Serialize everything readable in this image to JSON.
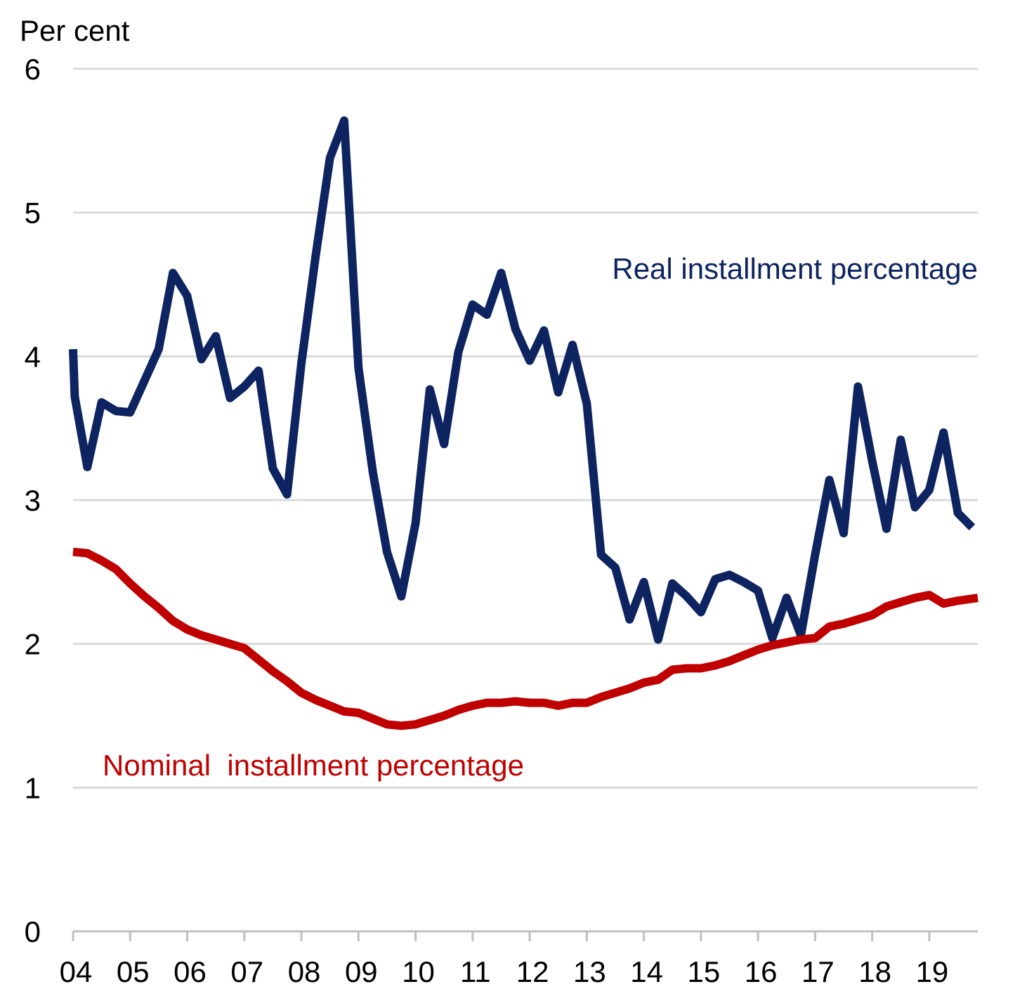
{
  "chart_data": {
    "type": "line",
    "title": "",
    "ylabel": "Per cent",
    "xlabel": "",
    "ylim": [
      0,
      6
    ],
    "yticks": [
      0,
      1,
      2,
      3,
      4,
      5,
      6
    ],
    "xlim": [
      2004.0,
      2019.85
    ],
    "x_tick_labels": [
      "04",
      "05",
      "06",
      "07",
      "08",
      "09",
      "10",
      "11",
      "12",
      "13",
      "14",
      "15",
      "16",
      "17",
      "18",
      "19"
    ],
    "grid": true,
    "series": [
      {
        "name": "Real installment percentage",
        "color": "#0d2461",
        "x": [
          2004.0,
          2004.03,
          2004.25,
          2004.5,
          2004.75,
          2005.0,
          2005.25,
          2005.5,
          2005.75,
          2006.0,
          2006.25,
          2006.5,
          2006.75,
          2007.0,
          2007.25,
          2007.5,
          2007.75,
          2008.0,
          2008.25,
          2008.5,
          2008.75,
          2009.0,
          2009.25,
          2009.5,
          2009.75,
          2010.0,
          2010.25,
          2010.5,
          2010.75,
          2011.0,
          2011.25,
          2011.5,
          2011.75,
          2012.0,
          2012.25,
          2012.5,
          2012.75,
          2013.0,
          2013.25,
          2013.5,
          2013.75,
          2014.0,
          2014.25,
          2014.5,
          2014.75,
          2015.0,
          2015.25,
          2015.5,
          2015.75,
          2016.0,
          2016.25,
          2016.5,
          2016.75,
          2017.0,
          2017.25,
          2017.5,
          2017.75,
          2018.0,
          2018.25,
          2018.5,
          2018.75,
          2019.0,
          2019.25,
          2019.5,
          2019.75
        ],
        "values": [
          4.05,
          3.72,
          3.23,
          3.68,
          3.62,
          3.61,
          3.83,
          4.05,
          4.58,
          4.42,
          3.98,
          4.14,
          3.71,
          3.79,
          3.9,
          3.22,
          3.04,
          3.95,
          4.7,
          5.38,
          5.64,
          3.92,
          3.2,
          2.64,
          2.33,
          2.84,
          3.77,
          3.39,
          4.03,
          4.36,
          4.29,
          4.58,
          4.19,
          3.97,
          4.18,
          3.75,
          4.08,
          3.67,
          2.62,
          2.53,
          2.17,
          2.43,
          2.03,
          2.42,
          2.33,
          2.22,
          2.45,
          2.48,
          2.43,
          2.37,
          2.04,
          2.32,
          2.06,
          2.62,
          3.14,
          2.77,
          3.79,
          3.27,
          2.8,
          3.42,
          2.95,
          3.07,
          3.47,
          2.91,
          2.81
        ]
      },
      {
        "name": "Nominal  installment percentage",
        "color": "#c00000",
        "x": [
          2004.0,
          2004.25,
          2004.5,
          2004.75,
          2005.0,
          2005.25,
          2005.5,
          2005.75,
          2006.0,
          2006.25,
          2006.5,
          2006.75,
          2007.0,
          2007.25,
          2007.5,
          2007.75,
          2008.0,
          2008.25,
          2008.5,
          2008.75,
          2009.0,
          2009.25,
          2009.5,
          2009.75,
          2010.0,
          2010.25,
          2010.5,
          2010.75,
          2011.0,
          2011.25,
          2011.5,
          2011.75,
          2012.0,
          2012.25,
          2012.5,
          2012.75,
          2013.0,
          2013.25,
          2013.5,
          2013.75,
          2014.0,
          2014.25,
          2014.5,
          2014.75,
          2015.0,
          2015.25,
          2015.5,
          2015.75,
          2016.0,
          2016.25,
          2016.5,
          2016.75,
          2017.0,
          2017.25,
          2017.5,
          2017.75,
          2018.0,
          2018.25,
          2018.5,
          2018.75,
          2019.0,
          2019.25,
          2019.5,
          2019.85
        ],
        "values": [
          2.64,
          2.63,
          2.58,
          2.52,
          2.42,
          2.33,
          2.25,
          2.16,
          2.1,
          2.06,
          2.03,
          2.0,
          1.97,
          1.89,
          1.81,
          1.74,
          1.66,
          1.61,
          1.57,
          1.53,
          1.52,
          1.48,
          1.44,
          1.43,
          1.44,
          1.47,
          1.5,
          1.54,
          1.57,
          1.59,
          1.59,
          1.6,
          1.59,
          1.59,
          1.57,
          1.59,
          1.59,
          1.63,
          1.66,
          1.69,
          1.73,
          1.75,
          1.82,
          1.83,
          1.83,
          1.85,
          1.88,
          1.92,
          1.96,
          1.99,
          2.01,
          2.03,
          2.04,
          2.12,
          2.14,
          2.17,
          2.2,
          2.26,
          2.29,
          2.32,
          2.34,
          2.28,
          2.3,
          2.32
        ]
      }
    ],
    "annotations": [
      {
        "text": "Real installment percentage",
        "series": 0
      },
      {
        "text": "Nominal  installment percentage",
        "series": 1
      }
    ]
  }
}
